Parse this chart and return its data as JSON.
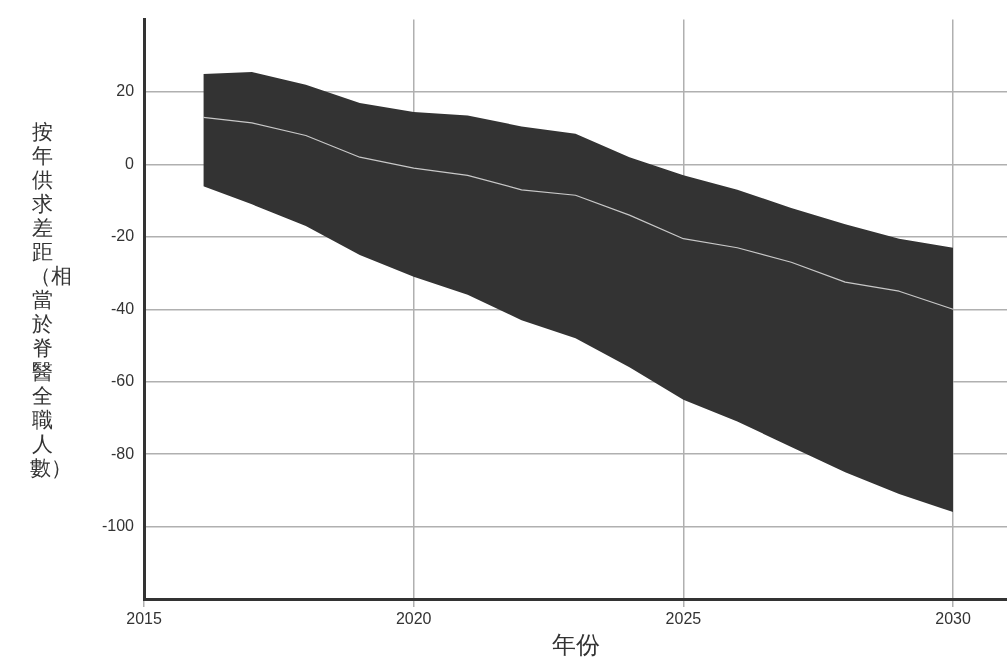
{
  "chart_data": {
    "type": "line",
    "xlabel": "年份",
    "ylabel": "按年供求差距（相當於脊醫全職人數）",
    "x": [
      2016.1,
      2017,
      2018,
      2019,
      2020,
      2021,
      2022,
      2023,
      2024,
      2025,
      2026,
      2027,
      2028,
      2029,
      2030
    ],
    "series": [
      {
        "color": "#c8c8c8",
        "values": [
          13,
          11.5,
          8,
          2,
          -1,
          -3,
          -7,
          -8.5,
          -14,
          -20.5,
          -23,
          -27,
          -32.5,
          -35,
          -40
        ],
        "lower": [
          -6,
          -11,
          -17,
          -25,
          -31,
          -36,
          -43,
          -48,
          -56,
          -65,
          -71,
          -78,
          -85,
          -91,
          -96
        ],
        "upper": [
          25,
          25.5,
          22,
          17,
          14.5,
          13.5,
          10.5,
          8.5,
          2,
          -3,
          -7,
          -12,
          -16.5,
          -20.5,
          -23
        ]
      }
    ],
    "xlim": [
      2015,
      2031
    ],
    "xticks": [
      2015,
      2020,
      2025,
      2030
    ],
    "ylim": [
      -120,
      40
    ],
    "yticks": [
      -100,
      -80,
      -60,
      -40,
      -20,
      0,
      20
    ],
    "grid": true,
    "legend": false,
    "marker": "none",
    "line_style": "solid"
  }
}
